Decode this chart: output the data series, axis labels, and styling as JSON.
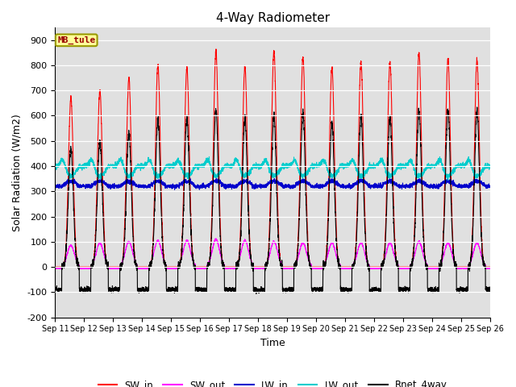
{
  "title": "4-Way Radiometer",
  "xlabel": "Time",
  "ylabel": "Solar Radiation (W/m2)",
  "ylim": [
    -200,
    950
  ],
  "yticks": [
    -200,
    -100,
    0,
    100,
    200,
    300,
    400,
    500,
    600,
    700,
    800,
    900
  ],
  "xtick_labels": [
    "Sep 11",
    "Sep 12",
    "Sep 13",
    "Sep 14",
    "Sep 15",
    "Sep 16",
    "Sep 17",
    "Sep 18",
    "Sep 19",
    "Sep 20",
    "Sep 21",
    "Sep 22",
    "Sep 23",
    "Sep 24",
    "Sep 25",
    "Sep 26"
  ],
  "station_label": "MB_tule",
  "legend_entries": [
    "SW_in",
    "SW_out",
    "LW_in",
    "LW_out",
    "Rnet_4way"
  ],
  "colors": {
    "SW_in": "#FF0000",
    "SW_out": "#FF00FF",
    "LW_in": "#0000CC",
    "LW_out": "#00CCCC",
    "Rnet_4way": "#000000"
  },
  "plot_bg_color": "#E0E0E0",
  "fig_bg_color": "#FFFFFF",
  "n_days": 15,
  "points_per_day": 288,
  "SW_in_peaks": [
    670,
    700,
    750,
    800,
    790,
    855,
    795,
    855,
    830,
    790,
    815,
    810,
    850,
    825,
    820
  ],
  "SW_out_peaks": [
    85,
    95,
    100,
    105,
    105,
    110,
    105,
    100,
    95,
    95,
    95,
    95,
    100,
    95,
    95
  ],
  "LW_in_base": 320,
  "LW_out_base": 400,
  "LW_out_day_peak": 460,
  "Rnet_peaks": [
    470,
    500,
    535,
    585,
    585,
    625,
    585,
    600,
    610,
    570,
    595,
    590,
    620,
    620,
    620
  ],
  "Rnet_night": -90,
  "figsize": [
    6.4,
    4.8
  ],
  "dpi": 100
}
